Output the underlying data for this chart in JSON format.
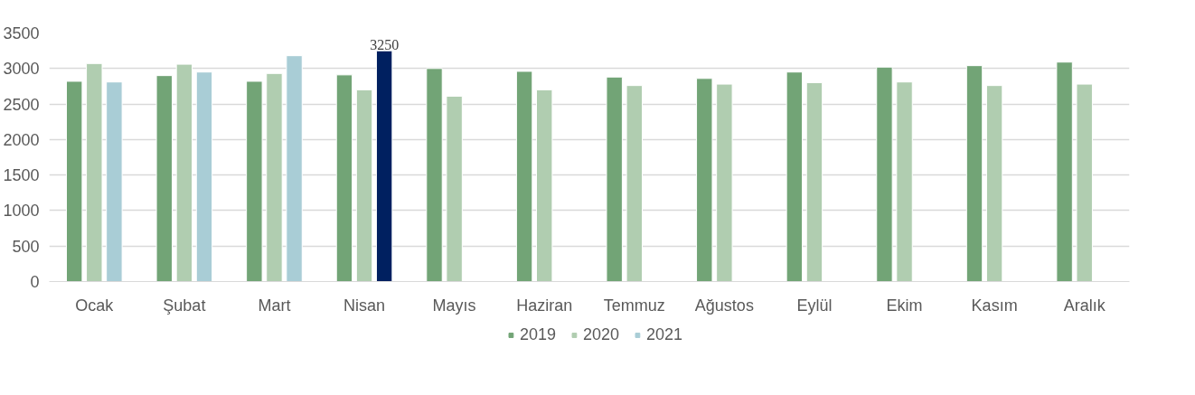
{
  "chart_data": {
    "type": "bar",
    "categories": [
      "Ocak",
      "Şubat",
      "Mart",
      "Nisan",
      "Mayıs",
      "Haziran",
      "Temmuz",
      "Ağustos",
      "Eylül",
      "Ekim",
      "Kasım",
      "Aralık"
    ],
    "series": [
      {
        "name": "2019",
        "color": "#72a476",
        "values": [
          2820,
          2900,
          2820,
          2910,
          3000,
          2960,
          2880,
          2860,
          2950,
          3020,
          3040,
          3090
        ]
      },
      {
        "name": "2020",
        "color": "#b0cdb0",
        "values": [
          3070,
          3060,
          2930,
          2700,
          2610,
          2700,
          2760,
          2780,
          2800,
          2810,
          2760,
          2780
        ]
      },
      {
        "name": "2021",
        "color": "#a9cdd6",
        "colors": [
          "#a9cdd6",
          "#a9cdd6",
          "#a9cdd6",
          "#002060",
          null,
          null,
          null,
          null,
          null,
          null,
          null,
          null
        ],
        "values": [
          2810,
          2950,
          3180,
          3250,
          null,
          null,
          null,
          null,
          null,
          null,
          null,
          null
        ],
        "value_labels": [
          null,
          null,
          null,
          "3250",
          null,
          null,
          null,
          null,
          null,
          null,
          null,
          null
        ]
      }
    ],
    "ylim": [
      0,
      3500
    ],
    "yticks": [
      0,
      500,
      1000,
      1500,
      2000,
      2500,
      3000,
      3500
    ],
    "grid": "y",
    "legend": "bottom"
  }
}
